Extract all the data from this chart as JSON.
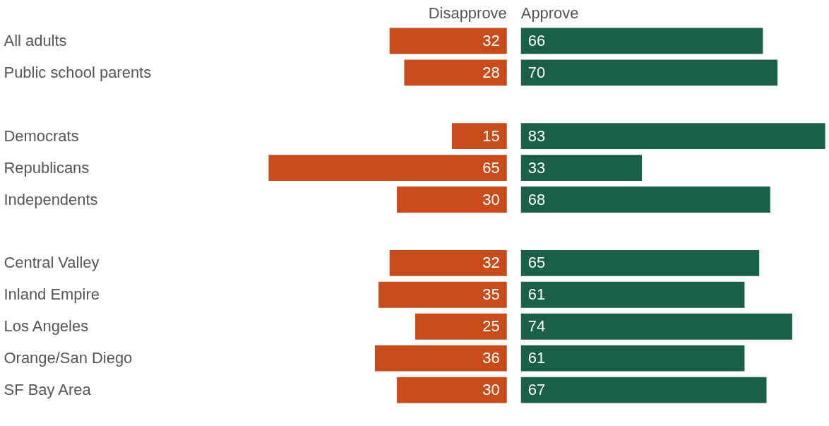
{
  "chart_data": [
    {
      "type": "bar",
      "orientation": "horizontal",
      "title": "Disapprove",
      "categories": [
        "All adults",
        "Public school parents",
        null,
        "Democrats",
        "Republicans",
        "Independents",
        null,
        "Central Valley",
        "Inland Empire",
        "Los Angeles",
        "Orange/San Diego",
        "SF Bay Area"
      ],
      "values": [
        32,
        28,
        null,
        15,
        65,
        30,
        null,
        32,
        35,
        25,
        36,
        30
      ],
      "color": "#c84b1b",
      "data_labels": true,
      "tick_labels": "y"
    },
    {
      "type": "bar",
      "orientation": "horizontal",
      "title": "Approve",
      "categories": [
        null,
        null,
        null,
        null,
        null,
        null,
        null,
        null,
        null,
        null,
        null,
        null
      ],
      "values": [
        66,
        70,
        null,
        83,
        33,
        68,
        null,
        65,
        61,
        74,
        61,
        67
      ],
      "color": "#1a6047",
      "data_labels": true,
      "tick_labels": false
    }
  ]
}
